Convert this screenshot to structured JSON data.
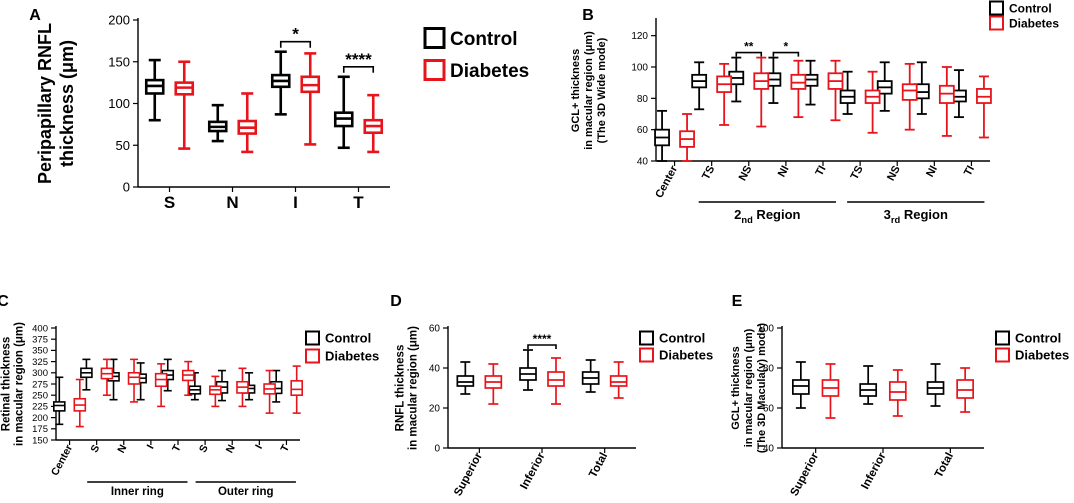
{
  "colors": {
    "control": "#000000",
    "diabetes": "#e8141b"
  },
  "chart_data": [
    {
      "id": "A",
      "panel_letter": "A",
      "type": "boxplot",
      "ylabel_lines": [
        "Peripapillary RNFL",
        "thickness (μm)"
      ],
      "ylim": [
        0,
        200
      ],
      "yticks": [
        "0",
        "50",
        "100",
        "150",
        "200"
      ],
      "categories": [
        "S",
        "N",
        "I",
        "T"
      ],
      "legend": [
        "Control",
        "Diabetes"
      ],
      "series": [
        {
          "name": "Control",
          "boxes": [
            [
              80,
              112,
              121,
              128,
              152
            ],
            [
              55,
              67,
              72,
              78,
              98
            ],
            [
              87,
              120,
              127,
              134,
              162
            ],
            [
              47,
              73,
              82,
              89,
              132
            ]
          ]
        },
        {
          "name": "Diabetes",
          "boxes": [
            [
              46,
              111,
              119,
              125,
              150
            ],
            [
              42,
              64,
              71,
              79,
              112
            ],
            [
              51,
              114,
              122,
              132,
              160
            ],
            [
              42,
              65,
              73,
              80,
              110
            ]
          ]
        }
      ],
      "annotations": [
        {
          "category": "I",
          "label": "*"
        },
        {
          "category": "T",
          "label": "****"
        }
      ]
    },
    {
      "id": "B",
      "panel_letter": "B",
      "type": "boxplot",
      "ylabel_lines": [
        "GCL+ thickness",
        "in macular region (μm)",
        "(The 3D Wide mode)"
      ],
      "ylim": [
        40,
        130
      ],
      "yticks": [
        "40",
        "60",
        "80",
        "100",
        "120"
      ],
      "categories": [
        "Center",
        "TS",
        "NS",
        "NI",
        "TI",
        "TS",
        "NS",
        "NI",
        "TI"
      ],
      "legend": [
        "Control",
        "Diabetes"
      ],
      "groups": [
        {
          "label": "2nd Region",
          "base": "2",
          "sub": "nd",
          "rest": " Region"
        },
        {
          "label": "3rd Region",
          "base": "3",
          "sub": "rd",
          "rest": " Region"
        }
      ],
      "series": [
        {
          "name": "Control",
          "boxes": [
            [
              40,
              50,
              55,
              60,
              72
            ],
            [
              73,
              87,
              91,
              95,
              103
            ],
            [
              78,
              89,
              93,
              97,
              106
            ],
            [
              77,
              88,
              92,
              96,
              106
            ],
            [
              76,
              88,
              92,
              95,
              104
            ],
            [
              70,
              77,
              81,
              85,
              97
            ],
            [
              72,
              83,
              87,
              91,
              103
            ],
            [
              70,
              80,
              84,
              89,
              103
            ],
            [
              68,
              78,
              81,
              85,
              98
            ]
          ]
        },
        {
          "name": "Diabetes",
          "boxes": [
            [
              40,
              49,
              54,
              59,
              70
            ],
            [
              63,
              84,
              89,
              94,
              102
            ],
            [
              62,
              86,
              91,
              96,
              106
            ],
            [
              68,
              86,
              90,
              95,
              104
            ],
            [
              66,
              86,
              91,
              96,
              104
            ],
            [
              58,
              77,
              81,
              85,
              97
            ],
            [
              60,
              79,
              85,
              89,
              102
            ],
            [
              56,
              77,
              83,
              88,
              100
            ],
            [
              55,
              77,
              81,
              86,
              94
            ]
          ]
        }
      ],
      "annotations": [
        {
          "category_index": 2,
          "label": "**"
        },
        {
          "category_index": 3,
          "label": "*"
        }
      ]
    },
    {
      "id": "C",
      "panel_letter": "C",
      "type": "boxplot",
      "ylabel_lines": [
        "Retinal thickness",
        "in macular region (μm)"
      ],
      "ylim": [
        150,
        400
      ],
      "yticks": [
        "150",
        "175",
        "200",
        "225",
        "250",
        "275",
        "300",
        "325",
        "350",
        "375",
        "400"
      ],
      "categories": [
        "Center",
        "S",
        "N",
        "I",
        "T",
        "S",
        "N",
        "I",
        "T"
      ],
      "legend": [
        "Control",
        "Diabetes"
      ],
      "groups": [
        {
          "label": "Inner ring"
        },
        {
          "label": "Outer ring"
        }
      ],
      "series": [
        {
          "name": "Control",
          "boxes": [
            [
              185,
              215,
              227,
              235,
              290
            ],
            [
              262,
              290,
              300,
              310,
              330
            ],
            [
              240,
              282,
              292,
              300,
              330
            ],
            [
              240,
              278,
              288,
              297,
              322
            ],
            [
              260,
              285,
              295,
              305,
              330
            ],
            [
              240,
              253,
              262,
              270,
              300
            ],
            [
              238,
              255,
              268,
              280,
              305
            ],
            [
              240,
              255,
              265,
              272,
              300
            ],
            [
              235,
              254,
              265,
              280,
              305
            ]
          ]
        },
        {
          "name": "Diabetes",
          "boxes": [
            [
              180,
              215,
              228,
              242,
              285
            ],
            [
              250,
              287,
              298,
              310,
              330
            ],
            [
              235,
              275,
              290,
              300,
              330
            ],
            [
              225,
              270,
              285,
              298,
              320
            ],
            [
              250,
              283,
              295,
              305,
              325
            ],
            [
              225,
              252,
              262,
              270,
              292
            ],
            [
              225,
              255,
              268,
              280,
              310
            ],
            [
              210,
              253,
              264,
              275,
              305
            ],
            [
              210,
              250,
              263,
              282,
              315
            ]
          ]
        }
      ]
    },
    {
      "id": "D",
      "panel_letter": "D",
      "type": "boxplot",
      "ylabel_lines": [
        "RNFL thickness",
        "in macular region (μm)"
      ],
      "ylim": [
        0,
        60
      ],
      "yticks": [
        "0",
        "20",
        "40",
        "60"
      ],
      "categories": [
        "Superior",
        "Inferior",
        "Total"
      ],
      "legend": [
        "Control",
        "Diabetes"
      ],
      "series": [
        {
          "name": "Control",
          "boxes": [
            [
              27,
              31,
              33,
              36,
              43
            ],
            [
              29,
              34,
              37,
              40,
              49
            ],
            [
              28,
              32,
              35,
              38,
              44
            ]
          ]
        },
        {
          "name": "Diabetes",
          "boxes": [
            [
              22,
              30,
              33,
              36,
              42
            ],
            [
              22,
              31,
              34,
              38,
              45
            ],
            [
              25,
              31,
              33,
              36,
              43
            ]
          ]
        }
      ],
      "annotations": [
        {
          "category": "Inferior",
          "label": "****"
        }
      ]
    },
    {
      "id": "E",
      "panel_letter": "E",
      "type": "boxplot",
      "ylabel_lines": [
        "GCL+ thickness",
        "in macular region (μm)",
        "(The 3D Macula(v) mode)"
      ],
      "ylim": [
        40,
        100
      ],
      "yticks": [
        "40",
        "60",
        "80",
        "100"
      ],
      "categories": [
        "Superior",
        "Inferior",
        "Total"
      ],
      "legend": [
        "Control",
        "Diabetes"
      ],
      "series": [
        {
          "name": "Control",
          "boxes": [
            [
              60,
              67,
              71,
              74,
              83
            ],
            [
              62,
              66,
              69,
              72,
              81
            ],
            [
              61,
              67,
              70,
              73,
              82
            ]
          ]
        },
        {
          "name": "Diabetes",
          "boxes": [
            [
              55,
              66,
              70,
              74,
              82
            ],
            [
              56,
              64,
              68,
              73,
              79
            ],
            [
              58,
              65,
              69,
              74,
              80
            ]
          ]
        }
      ]
    }
  ]
}
